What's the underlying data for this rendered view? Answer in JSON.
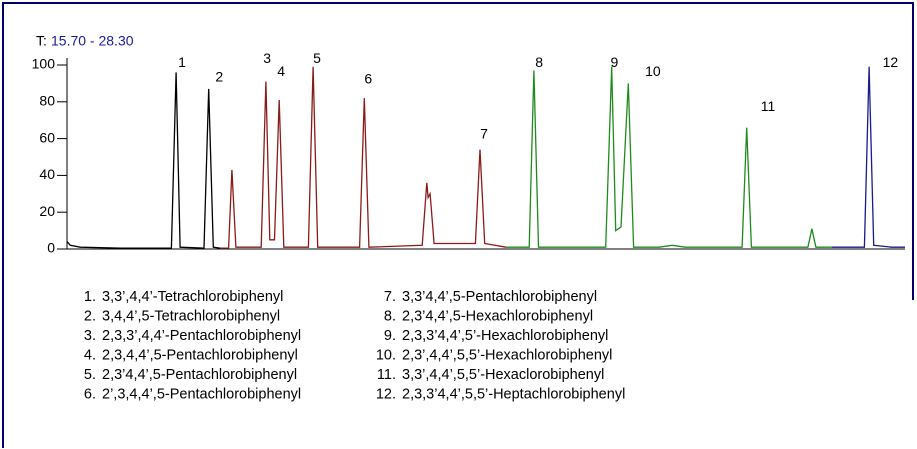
{
  "chart_data": {
    "type": "line",
    "time_label": "T:",
    "time_range": "15.70 - 28.30",
    "xlim": [
      15.7,
      28.3
    ],
    "ylim": [
      0,
      100
    ],
    "yticks": [
      0,
      20,
      40,
      60,
      80,
      100
    ],
    "series": [
      {
        "color": "#000000",
        "x": [
          15.7,
          15.75,
          15.9,
          16.5,
          17.27,
          17.34,
          17.4,
          17.76,
          17.83,
          17.9,
          18.0
        ],
        "values": [
          4,
          2,
          1,
          0.5,
          0.5,
          96,
          1,
          0.5,
          87,
          1,
          0.5
        ]
      },
      {
        "color": "#8b1a1a",
        "x": [
          18.0,
          18.13,
          18.18,
          18.24,
          18.62,
          18.69,
          18.75,
          18.82,
          18.89,
          18.96,
          19.33,
          19.4,
          19.47,
          20.1,
          20.17,
          20.24,
          21.04,
          21.11,
          21.13,
          21.16,
          21.22,
          21.84,
          21.91,
          21.98,
          22.3
        ],
        "values": [
          0.5,
          0.5,
          43,
          1,
          1,
          91,
          5,
          5,
          81,
          1,
          1,
          99,
          1,
          1,
          82,
          1,
          2,
          36,
          28,
          30,
          3,
          3,
          54,
          3,
          1
        ]
      },
      {
        "color": "#1f8b1f",
        "x": [
          22.3,
          22.65,
          22.72,
          22.79,
          23.8,
          23.89,
          23.95,
          24.03,
          24.14,
          24.22,
          24.6,
          24.8,
          25.0,
          25.85,
          25.92,
          25.99,
          26.84,
          26.9,
          26.96,
          27.2
        ],
        "values": [
          1,
          1,
          97,
          1,
          1,
          99,
          10,
          12,
          90,
          1,
          1,
          2,
          1,
          1,
          66,
          1,
          1,
          11,
          1,
          1
        ]
      },
      {
        "color": "#1a1a8b",
        "x": [
          27.2,
          27.5,
          27.69,
          27.76,
          27.83,
          28.1,
          28.3
        ],
        "values": [
          1,
          1,
          1,
          99,
          2,
          1,
          1
        ]
      }
    ],
    "annotations": [
      {
        "text": "1",
        "x": 17.43,
        "y": 101
      },
      {
        "text": "2",
        "x": 17.99,
        "y": 93
      },
      {
        "text": "3",
        "x": 18.71,
        "y": 103
      },
      {
        "text": "4",
        "x": 18.92,
        "y": 96
      },
      {
        "text": "5",
        "x": 19.46,
        "y": 103
      },
      {
        "text": "6",
        "x": 20.23,
        "y": 92
      },
      {
        "text": "7",
        "x": 21.97,
        "y": 62
      },
      {
        "text": "8",
        "x": 22.8,
        "y": 101
      },
      {
        "text": "9",
        "x": 23.93,
        "y": 101
      },
      {
        "text": "10",
        "x": 24.51,
        "y": 96
      },
      {
        "text": "11",
        "x": 26.24,
        "y": 77
      },
      {
        "text": "12",
        "x": 28.08,
        "y": 101
      }
    ],
    "compounds": [
      {
        "number": "1.",
        "name": "3,3’,4,4’-Tetrachlorobiphenyl"
      },
      {
        "number": "2.",
        "name": "3,4,4’,5-Tetrachlorobiphenyl"
      },
      {
        "number": "3.",
        "name": "2,3,3’,4,4’-Pentachlorobiphenyl"
      },
      {
        "number": "4.",
        "name": "2,3,4,4’,5-Pentachlorobiphenyl"
      },
      {
        "number": "5.",
        "name": "2,3’4,4’,5-Pentachlorobiphenyl"
      },
      {
        "number": "6.",
        "name": "2’,3,4,4’,5-Pentachlorobiphenyl"
      },
      {
        "number": "7.",
        "name": "3,3’4,4’,5-Pentachlorobiphenyl"
      },
      {
        "number": "8.",
        "name": "2,3’4,4’,5-Hexachlorobiphenyl"
      },
      {
        "number": "9.",
        "name": "2,3,3’4,4’,5’-Hexachlorobiphenyl"
      },
      {
        "number": "10.",
        "name": "2,3’,4,4’,5,5’-Hexachlorobiphenyl"
      },
      {
        "number": "11.",
        "name": "3,3’,4,4’,5,5’-Hexaclorobiphenyl"
      },
      {
        "number": "12.",
        "name": "2,3,3’4,4’,5,5’-Heptachlorobiphenyl"
      }
    ]
  }
}
